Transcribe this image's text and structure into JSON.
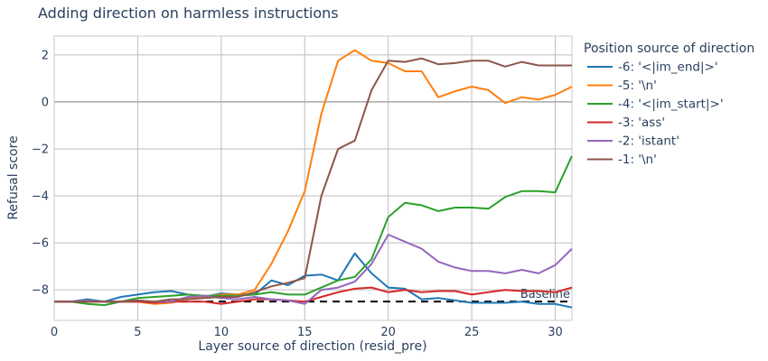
{
  "chart_data": {
    "type": "line",
    "title": "Adding direction on harmless instructions",
    "xlabel": "Layer source of direction (resid_pre)",
    "ylabel": "Refusal score",
    "xlim": [
      0,
      31
    ],
    "ylim": [
      -9.3,
      2.8
    ],
    "xticks": [
      0,
      5,
      10,
      15,
      20,
      25,
      30
    ],
    "yticks": [
      2,
      0,
      -2,
      -4,
      -6,
      -8
    ],
    "grid": true,
    "legend_title": "Position source of direction",
    "legend_position": "right",
    "baseline": {
      "value": -8.5,
      "label": "Baseline",
      "style": "dashed",
      "color": "#000000"
    },
    "x": [
      0,
      1,
      2,
      3,
      4,
      5,
      6,
      7,
      8,
      9,
      10,
      11,
      12,
      13,
      14,
      15,
      16,
      17,
      18,
      19,
      20,
      21,
      22,
      23,
      24,
      25,
      26,
      27,
      28,
      29,
      30,
      31
    ],
    "series": [
      {
        "name": "-6: '<|im_end|>'",
        "color": "#1f77b4",
        "values": [
          -8.5,
          -8.5,
          -8.4,
          -8.5,
          -8.3,
          -8.2,
          -8.1,
          -8.05,
          -8.2,
          -8.3,
          -8.15,
          -8.2,
          -8.2,
          -7.6,
          -7.8,
          -7.4,
          -7.35,
          -7.6,
          -6.45,
          -7.3,
          -7.9,
          -7.95,
          -8.4,
          -8.35,
          -8.45,
          -8.55,
          -8.55,
          -8.55,
          -8.5,
          -8.6,
          -8.6,
          -8.75
        ]
      },
      {
        "name": "-5: '\\n'",
        "color": "#ff7f0e",
        "values": [
          -8.5,
          -8.5,
          -8.5,
          -8.5,
          -8.5,
          -8.5,
          -8.6,
          -8.55,
          -8.35,
          -8.3,
          -8.2,
          -8.2,
          -8.0,
          -6.9,
          -5.5,
          -3.8,
          -0.5,
          1.75,
          2.2,
          1.75,
          1.65,
          1.3,
          1.3,
          0.2,
          0.45,
          0.65,
          0.5,
          -0.05,
          0.2,
          0.1,
          0.3,
          0.65
        ]
      },
      {
        "name": "-4: '<|im_start|>'",
        "color": "#2ca02c",
        "values": [
          -8.5,
          -8.5,
          -8.6,
          -8.65,
          -8.5,
          -8.35,
          -8.3,
          -8.25,
          -8.2,
          -8.25,
          -8.25,
          -8.25,
          -8.2,
          -8.1,
          -8.2,
          -8.2,
          -7.9,
          -7.6,
          -7.45,
          -6.7,
          -4.9,
          -4.3,
          -4.4,
          -4.65,
          -4.5,
          -4.5,
          -4.55,
          -4.05,
          -3.8,
          -3.8,
          -3.85,
          -2.3
        ]
      },
      {
        "name": "-3: 'ass'",
        "color": "#d62728",
        "values": [
          -8.5,
          -8.5,
          -8.5,
          -8.5,
          -8.5,
          -8.5,
          -8.55,
          -8.5,
          -8.5,
          -8.5,
          -8.6,
          -8.5,
          -8.4,
          -8.4,
          -8.45,
          -8.5,
          -8.3,
          -8.1,
          -7.95,
          -7.9,
          -8.1,
          -8.0,
          -8.1,
          -8.05,
          -8.05,
          -8.2,
          -8.1,
          -8.0,
          -8.05,
          -8.05,
          -8.1,
          -7.9
        ]
      },
      {
        "name": "-2: 'istant'",
        "color": "#9467bd",
        "values": [
          -8.5,
          -8.5,
          -8.45,
          -8.5,
          -8.5,
          -8.45,
          -8.5,
          -8.5,
          -8.3,
          -8.25,
          -8.35,
          -8.4,
          -8.3,
          -8.4,
          -8.45,
          -8.6,
          -8.0,
          -7.9,
          -7.65,
          -6.9,
          -5.65,
          -5.95,
          -6.25,
          -6.8,
          -7.05,
          -7.2,
          -7.2,
          -7.3,
          -7.15,
          -7.3,
          -6.95,
          -6.25
        ]
      },
      {
        "name": "-1: '\\n'",
        "color": "#8c564b",
        "values": [
          -8.5,
          -8.5,
          -8.5,
          -8.5,
          -8.5,
          -8.45,
          -8.5,
          -8.4,
          -8.4,
          -8.35,
          -8.3,
          -8.3,
          -8.1,
          -7.85,
          -7.7,
          -7.5,
          -4.0,
          -2.0,
          -1.65,
          0.5,
          1.75,
          1.7,
          1.85,
          1.6,
          1.65,
          1.75,
          1.75,
          1.5,
          1.7,
          1.55,
          1.55,
          1.55
        ]
      }
    ]
  }
}
